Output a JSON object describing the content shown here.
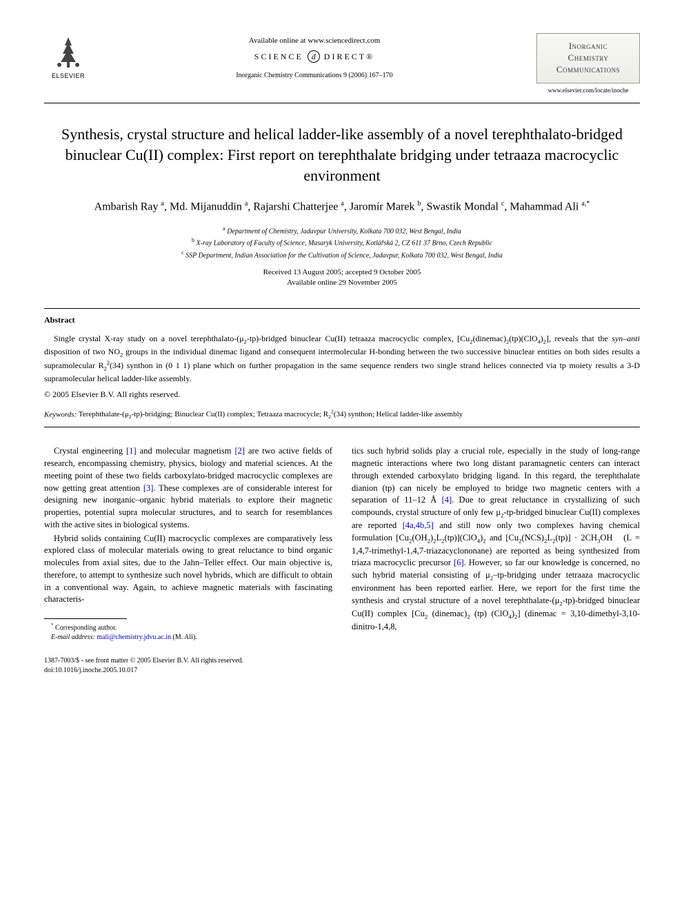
{
  "header": {
    "available_text": "Available online at www.sciencedirect.com",
    "sciencedirect_left": "SCIENCE",
    "sciencedirect_right": "DIRECT®",
    "journal_ref": "Inorganic Chemistry Communications 9 (2006) 167–170",
    "publisher": "ELSEVIER",
    "journal_box_line1": "Inorganic",
    "journal_box_line2": "Chemistry",
    "journal_box_line3": "Communications",
    "journal_url": "www.elsevier.com/locate/inoche"
  },
  "title": "Synthesis, crystal structure and helical ladder-like assembly of a novel terephthalato-bridged binuclear Cu(II) complex: First report on terephthalate bridging under tetraaza macrocyclic environment",
  "authors_html": "Ambarish Ray <sup>a</sup>, Md. Mijanuddin <sup>a</sup>, Rajarshi Chatterjee <sup>a</sup>, Jaromír Marek <sup>b</sup>, Swastik Mondal <sup>c</sup>, Mahammad Ali <sup>a,*</sup>",
  "affiliations": [
    "<sup>a</sup> Department of Chemistry, Jadavpur University, Kolkata 700 032, West Bengal, India",
    "<sup>b</sup> X-ray Laboratory of Faculty of Science, Masaryk University, Kotlářská 2, CZ 611 37 Brno, Czech Republic",
    "<sup>c</sup> SSP Department, Indian Association for the Cultivation of Science, Jadavpur, Kolkata 700 032, West Bengal, India"
  ],
  "dates": {
    "received": "Received 13 August 2005; accepted 9 October 2005",
    "online": "Available online 29 November 2005"
  },
  "abstract": {
    "heading": "Abstract",
    "body_html": "Single crystal X-ray study on a novel terephthalato-(μ<sub>2</sub>-tp)-bridged binuclear Cu(II) tetraaza macrocyclic complex, [Cu<sub>2</sub>(dinemac)<sub>2</sub>(tp)(ClO<sub>4</sub>)<sub>2</sub>], reveals that the <i>syn–anti</i> disposition of two NO<sub>2</sub> groups in the individual dinemac ligand and consequent intermolecular H-bonding between the two successive binuclear entities on both sides results a supramolecular R<sub>2</sub><sup>2</sup>(34) synthon in (0 1 1) plane which on further propagation in the same sequence renders two single strand helices connected via tp moiety results a 3-D supramolecular helical ladder-like assembly.",
    "copyright": "© 2005 Elsevier B.V. All rights reserved."
  },
  "keywords": {
    "label": "Keywords:",
    "text_html": "Terephthalate-(μ<sub>2</sub>-tp)-bridging; Binuclear Cu(II) complex; Tetraaza macrocycle; R<sub>2</sub><sup>2</sup>(34) synthon; Helical ladder-like assembly"
  },
  "body": {
    "col1_p1_html": "Crystal engineering <a class='ref' href='#'>[1]</a> and molecular magnetism <a class='ref' href='#'>[2]</a> are two active fields of research, encompassing chemistry, physics, biology and material sciences. At the meeting point of these two fields carboxylato-bridged macrocyclic complexes are now getting great attention <a class='ref' href='#'>[3]</a>. These complexes are of considerable interest for designing new inorganic–organic hybrid materials to explore their magnetic properties, potential supra molecular structures, and to search for resemblances with the active sites in biological systems.",
    "col1_p2_html": "Hybrid solids containing Cu(II) macrocyclic complexes are comparatively less explored class of molecular materials owing to great reluctance to bind organic molecules from axial sites, due to the Jahn–Teller effect. Our main objective is, therefore, to attempt to synthesize such novel hybrids, which are difficult to obtain in a conventional way. Again, to achieve magnetic materials with fascinating characteris-",
    "col2_p1_html": "tics such hybrid solids play a crucial role, especially in the study of long-range magnetic interactions where two long distant paramagnetic centers can interact through extended carboxylato bridging ligand. In this regard, the terephthalate dianion (tp) can nicely be employed to bridge two magnetic centers with a separation of 11–12 Å <a class='ref' href='#'>[4]</a>. Due to great reluctance in crystallizing of such compounds, crystal structure of only few μ<sub>2</sub>-tp-bridged binuclear Cu(II) complexes are reported <a class='ref' href='#'>[4a,4b,5]</a> and still now only two complexes having chemical formulation [Cu<sub>2</sub>(OH<sub>2</sub>)<sub>2</sub>L<sub>2</sub>(tp)](ClO<sub>4</sub>)<sub>2</sub> and [Cu<sub>2</sub>(NCS)<sub>2</sub>L<sub>2</sub>(tp)] · 2CH<sub>3</sub>OH &nbsp; (L = 1,4,7-trimethyl-1,4,7-triazacyclononane) are reported as being synthesized from triaza macrocyclic precursor <a class='ref' href='#'>[6]</a>. However, so far our knowledge is concerned, no such hybrid material consisting of μ<sub>2</sub>–tp-bridging under tetraaza macrocyclic environment has been reported earlier. Here, we report for the first time the synthesis and crystal structure of a novel terephthalate-(μ<sub>2</sub>-tp)-bridged binuclear Cu(II) complex [Cu<sub>2</sub> (dinemac)<sub>2</sub> (tp) (ClO<sub>4</sub>)<sub>2</sub>] (dinemac = 3,10-dimethyl-3,10-dinitro-1,4,8,"
  },
  "footnote": {
    "corr": "Corresponding author.",
    "email_label": "E-mail address:",
    "email": "mali@chemistry.jdvu.ac.in",
    "email_person": "(M. Ali)."
  },
  "footer": {
    "line1": "1387-7003/$ - see front matter © 2005 Elsevier B.V. All rights reserved.",
    "line2": "doi:10.1016/j.inoche.2005.10.017"
  }
}
